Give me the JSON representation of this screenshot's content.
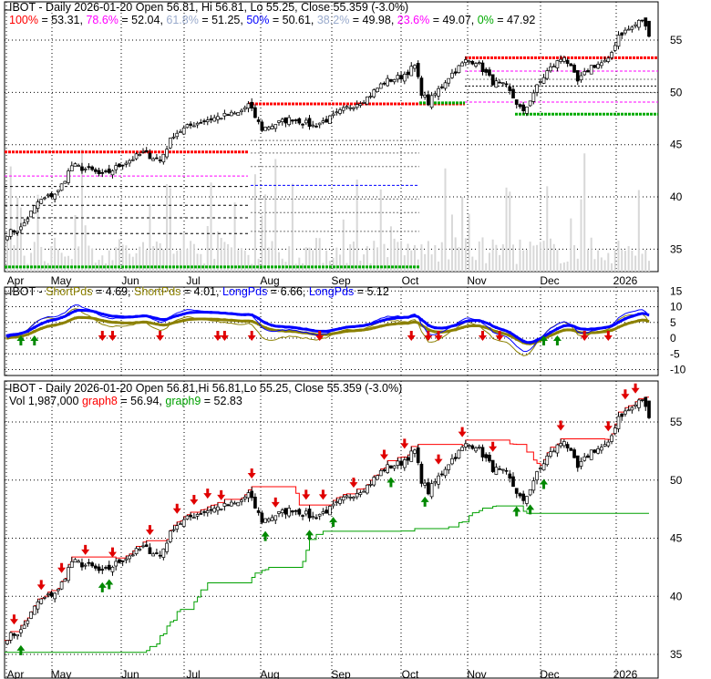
{
  "chart_data": [
    {
      "type": "candlestick",
      "title": "IBOT - Daily 2026-01-20 Open 56.81, Hi 56.81, Lo 55.25, Close 55.359 (-3.0%)",
      "fib_legend": [
        {
          "label": "100%",
          "value": "53.31",
          "color": "#ff0000"
        },
        {
          "label": "78.6%",
          "value": "52.04",
          "color": "#ff00ff"
        },
        {
          "label": "61.8%",
          "value": "51.25",
          "color": "#99aacc"
        },
        {
          "label": "50%",
          "value": "50.61",
          "color": "#0000ff"
        },
        {
          "label": "38.2%",
          "value": "49.98",
          "color": "#99aacc"
        },
        {
          "label": "23.6%",
          "value": "49.07",
          "color": "#ff00ff"
        },
        {
          "label": "0%",
          "value": "47.92",
          "color": "#00aa00"
        }
      ],
      "y_ticks": [
        "55",
        "50",
        "45",
        "40",
        "35"
      ],
      "ylim": [
        32.5,
        58
      ],
      "x_ticks": [
        "Apr",
        "May",
        "Jun",
        "Jul",
        "Aug",
        "Sep",
        "Oct",
        "Nov",
        "Dec",
        "2026"
      ],
      "trading_days": 190,
      "close_controls": [
        [
          0,
          36.5
        ],
        [
          4,
          37
        ],
        [
          9,
          39.5
        ],
        [
          15,
          40.5
        ],
        [
          19,
          43
        ],
        [
          25,
          42.5
        ],
        [
          28,
          42
        ],
        [
          33,
          43
        ],
        [
          40,
          44.2
        ],
        [
          45,
          43.5
        ],
        [
          49,
          46
        ],
        [
          55,
          47
        ],
        [
          60,
          47.5
        ],
        [
          68,
          48
        ],
        [
          71,
          48.8
        ],
        [
          75,
          46.5
        ],
        [
          79,
          47
        ],
        [
          84,
          47.5
        ],
        [
          90,
          46.8
        ],
        [
          95,
          47.5
        ],
        [
          100,
          48.5
        ],
        [
          106,
          49.5
        ],
        [
          111,
          51
        ],
        [
          116,
          51.5
        ],
        [
          120,
          52.5
        ],
        [
          122,
          50
        ],
        [
          124,
          49
        ],
        [
          130,
          51.5
        ],
        [
          135,
          53
        ],
        [
          138,
          53
        ],
        [
          143,
          51
        ],
        [
          147,
          50.5
        ],
        [
          150,
          49
        ],
        [
          152,
          48
        ],
        [
          155,
          50
        ],
        [
          159,
          52
        ],
        [
          164,
          53.5
        ],
        [
          168,
          51
        ],
        [
          172,
          52.5
        ],
        [
          177,
          53
        ],
        [
          180,
          55.5
        ],
        [
          184,
          56.2
        ],
        [
          187,
          57
        ],
        [
          189,
          55.36
        ]
      ]
    },
    {
      "type": "line",
      "title": "IBOT",
      "series": [
        {
          "name": "ShortPds",
          "value": "4.69",
          "color": "#8b8000"
        },
        {
          "name": "ShortPds",
          "value": "4.01",
          "color": "#8b8000"
        },
        {
          "name": "LongPds",
          "value": "6.66",
          "color": "#0000ff"
        },
        {
          "name": "LongPds",
          "value": "5.12",
          "color": "#0000ff"
        }
      ],
      "y_ticks": [
        "15",
        "10",
        "5",
        "0",
        "-5",
        "-10"
      ],
      "ylim": [
        -12,
        16
      ],
      "sell_signals": [
        28,
        31,
        45,
        62,
        64,
        72,
        92,
        119,
        124,
        127,
        140,
        145,
        170,
        177
      ],
      "buy_signals": [
        4,
        8,
        158,
        162
      ]
    },
    {
      "type": "candlestick",
      "title": "IBOT - Daily 2026-01-20 Open 56.81,Hi 56.81,Lo 55.25, Close 55.359 (-3.0%)",
      "volume_label": "Vol 1,987,000",
      "series": [
        {
          "name": "graph8",
          "value": "56.94",
          "color": "#ff0000"
        },
        {
          "name": "graph9",
          "value": "52.83",
          "color": "#00a000"
        }
      ],
      "y_ticks": [
        "55",
        "50",
        "45",
        "40",
        "35"
      ],
      "ylim": [
        33.5,
        58.5
      ],
      "sell_signals": [
        2,
        10,
        16,
        23,
        31,
        42,
        50,
        55,
        59,
        63,
        72,
        79,
        88,
        93,
        102,
        111,
        117,
        127,
        134,
        143,
        163,
        177,
        182,
        185
      ],
      "buy_signals": [
        4,
        28,
        30,
        76,
        89,
        96,
        113,
        123,
        150,
        154,
        158
      ]
    }
  ]
}
